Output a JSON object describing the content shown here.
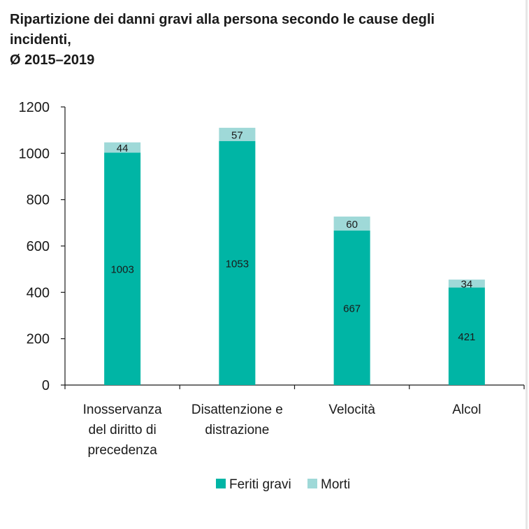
{
  "title_line1": "Ripartizione dei danni gravi alla persona secondo le cause degli incidenti,",
  "title_line2": "Ø 2015–2019",
  "colors": {
    "feriti": "#00b5a5",
    "morti": "#9fd9d8",
    "axis": "#1a1a1a",
    "text": "#1a1a1a"
  },
  "chart_data": {
    "type": "bar",
    "stacked": true,
    "title": "Ripartizione dei danni gravi alla persona secondo le cause degli incidenti, Ø 2015–2019",
    "categories": [
      [
        "Inosservanza",
        "del diritto di",
        "precedenza"
      ],
      [
        "Disattenzione e",
        "distrazione"
      ],
      [
        "Velocità"
      ],
      [
        "Alcol"
      ]
    ],
    "series": [
      {
        "name": "Feriti gravi",
        "values": [
          1003,
          1053,
          667,
          421
        ],
        "color": "#00b5a5"
      },
      {
        "name": "Morti",
        "values": [
          44,
          57,
          60,
          34
        ],
        "color": "#9fd9d8"
      }
    ],
    "ylim": [
      0,
      1200
    ],
    "yticks": [
      0,
      200,
      400,
      600,
      800,
      1000,
      1200
    ],
    "grid": false,
    "legend": "bottom"
  }
}
